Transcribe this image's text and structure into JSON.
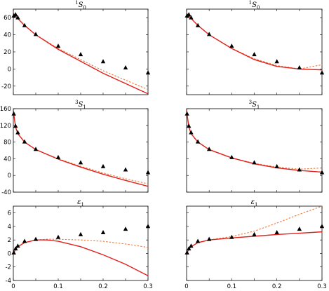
{
  "colors": {
    "solid": "#e0201b",
    "dashed": "#f07a3a",
    "points": "#000000",
    "frame": "#000000"
  },
  "chart_data": [
    {
      "type": "line",
      "title_main": "S",
      "title_sup": "1",
      "title_sub": "0",
      "xlim": [
        0,
        0.3
      ],
      "ylim": [
        -30,
        70
      ],
      "yticks": [
        "60",
        "40",
        "20",
        "0",
        "-20"
      ],
      "ytick_values": [
        60,
        40,
        20,
        0,
        -20
      ],
      "xticks": [],
      "xtick_values": [],
      "points": {
        "x": [
          0.001,
          0.005,
          0.01,
          0.025,
          0.05,
          0.1,
          0.15,
          0.2,
          0.25,
          0.3
        ],
        "y": [
          62.1,
          63.6,
          60,
          50.9,
          40.5,
          26.8,
          16.9,
          8.7,
          1.5,
          -4.5
        ]
      },
      "series": [
        {
          "style": "dashed",
          "x": [
            0,
            0.01,
            0.025,
            0.05,
            0.1,
            0.15,
            0.2,
            0.25,
            0.3
          ],
          "y": [
            65,
            59,
            51,
            40,
            24,
            11,
            -2,
            -13,
            -24
          ]
        },
        {
          "style": "solid",
          "x": [
            0,
            0.01,
            0.025,
            0.05,
            0.1,
            0.15,
            0.2,
            0.25,
            0.3
          ],
          "y": [
            65,
            59,
            51,
            40,
            23,
            9,
            -5,
            -17,
            -29
          ]
        }
      ]
    },
    {
      "type": "line",
      "title_main": "S",
      "title_sup": "1",
      "title_sub": "0",
      "xlim": [
        0,
        0.3
      ],
      "ylim": [
        -30,
        70
      ],
      "yticks": [],
      "ytick_values": [],
      "xticks": [],
      "xtick_values": [],
      "points": {
        "x": [
          0.001,
          0.005,
          0.01,
          0.025,
          0.05,
          0.1,
          0.15,
          0.2,
          0.25,
          0.3
        ],
        "y": [
          62.1,
          63.6,
          60,
          50.9,
          40.5,
          26.8,
          16.9,
          8.7,
          1.5,
          -4.5
        ]
      },
      "series": [
        {
          "style": "dashed",
          "x": [
            0,
            0.01,
            0.025,
            0.05,
            0.1,
            0.15,
            0.2,
            0.25,
            0.3
          ],
          "y": [
            65,
            59,
            51,
            40,
            24,
            12,
            4,
            0,
            5
          ]
        },
        {
          "style": "solid",
          "x": [
            0,
            0.01,
            0.025,
            0.05,
            0.1,
            0.15,
            0.2,
            0.25,
            0.3
          ],
          "y": [
            65,
            59,
            51,
            40,
            24,
            11,
            3,
            0,
            -1
          ]
        }
      ]
    },
    {
      "type": "line",
      "title_main": "S",
      "title_sup": "3",
      "title_sub": "1",
      "xlim": [
        0,
        0.3
      ],
      "ylim": [
        -40,
        160
      ],
      "yticks": [
        "160",
        "120",
        "80",
        "40",
        "0",
        "-40"
      ],
      "ytick_values": [
        160,
        120,
        80,
        40,
        0,
        -40
      ],
      "xticks": [],
      "xtick_values": [],
      "points": {
        "x": [
          0.001,
          0.005,
          0.01,
          0.025,
          0.05,
          0.1,
          0.15,
          0.2,
          0.25,
          0.3
        ],
        "y": [
          147.7,
          118.2,
          102.6,
          80.6,
          62.8,
          43.2,
          30.7,
          21.3,
          13.6,
          6.9
        ]
      },
      "series": [
        {
          "style": "dashed",
          "x": [
            0,
            0.005,
            0.01,
            0.025,
            0.05,
            0.1,
            0.15,
            0.2,
            0.25,
            0.3
          ],
          "y": [
            155,
            116,
            100,
            80,
            62,
            40,
            22,
            6,
            -8,
            -20
          ]
        },
        {
          "style": "solid",
          "x": [
            0,
            0.005,
            0.01,
            0.025,
            0.05,
            0.1,
            0.15,
            0.2,
            0.25,
            0.3
          ],
          "y": [
            155,
            116,
            100,
            80,
            62,
            39,
            20,
            3,
            -12,
            -26
          ]
        }
      ]
    },
    {
      "type": "line",
      "title_main": "S",
      "title_sup": "3",
      "title_sub": "1",
      "xlim": [
        0,
        0.3
      ],
      "ylim": [
        -40,
        160
      ],
      "yticks": [],
      "ytick_values": [],
      "xticks": [],
      "xtick_values": [],
      "points": {
        "x": [
          0.001,
          0.005,
          0.01,
          0.025,
          0.05,
          0.1,
          0.15,
          0.2,
          0.25,
          0.3
        ],
        "y": [
          147.7,
          118.2,
          102.6,
          80.6,
          62.8,
          43.2,
          30.7,
          21.3,
          13.6,
          6.9
        ]
      },
      "series": [
        {
          "style": "dashed",
          "x": [
            0,
            0.005,
            0.01,
            0.025,
            0.05,
            0.1,
            0.15,
            0.2,
            0.25,
            0.3
          ],
          "y": [
            155,
            116,
            100,
            80,
            62,
            42,
            29,
            20,
            15,
            18
          ]
        },
        {
          "style": "solid",
          "x": [
            0,
            0.005,
            0.01,
            0.025,
            0.05,
            0.1,
            0.15,
            0.2,
            0.25,
            0.3
          ],
          "y": [
            155,
            116,
            100,
            80,
            62,
            42,
            28,
            18,
            12,
            8
          ]
        }
      ]
    },
    {
      "type": "line",
      "title_main": "ε",
      "title_sup": "",
      "title_sub": "1",
      "xlim": [
        0,
        0.3
      ],
      "ylim": [
        -4,
        7
      ],
      "yticks": [
        "6",
        "4",
        "2",
        "0",
        "-2",
        "-4"
      ],
      "ytick_values": [
        6,
        4,
        2,
        0,
        -2,
        -4
      ],
      "xticks": [
        "0",
        "0.1",
        "0.2",
        "0.3"
      ],
      "xtick_values": [
        0,
        0.1,
        0.2,
        0.3
      ],
      "points": {
        "x": [
          0.001,
          0.005,
          0.01,
          0.025,
          0.05,
          0.1,
          0.15,
          0.2,
          0.25,
          0.3
        ],
        "y": [
          0.1,
          0.7,
          1.1,
          1.8,
          2.1,
          2.4,
          2.8,
          3.1,
          3.6,
          4.0
        ]
      },
      "series": [
        {
          "style": "dashed",
          "x": [
            0,
            0.005,
            0.01,
            0.025,
            0.05,
            0.075,
            0.1,
            0.15,
            0.2,
            0.25,
            0.3
          ],
          "y": [
            0,
            0.6,
            1.0,
            1.6,
            2.0,
            2.1,
            2.1,
            2.0,
            1.8,
            1.4,
            0.9
          ]
        },
        {
          "style": "solid",
          "x": [
            0,
            0.005,
            0.01,
            0.025,
            0.05,
            0.075,
            0.1,
            0.15,
            0.2,
            0.25,
            0.3
          ],
          "y": [
            0,
            0.6,
            1.0,
            1.6,
            2.0,
            2.0,
            1.8,
            1.0,
            -0.2,
            -1.6,
            -3.3
          ]
        }
      ]
    },
    {
      "type": "line",
      "title_main": "ε",
      "title_sup": "",
      "title_sub": "1",
      "xlim": [
        0,
        0.3
      ],
      "ylim": [
        -4,
        7
      ],
      "yticks": [],
      "ytick_values": [],
      "xticks": [
        "0",
        "0.1",
        "0.2",
        "0.3"
      ],
      "xtick_values": [
        0,
        0.1,
        0.2,
        0.3
      ],
      "points": {
        "x": [
          0.001,
          0.005,
          0.01,
          0.025,
          0.05,
          0.1,
          0.15,
          0.2,
          0.25,
          0.3
        ],
        "y": [
          0.1,
          0.7,
          1.1,
          1.8,
          2.1,
          2.4,
          2.8,
          3.1,
          3.6,
          4.0
        ]
      },
      "series": [
        {
          "style": "dashed",
          "x": [
            0,
            0.005,
            0.01,
            0.025,
            0.05,
            0.1,
            0.15,
            0.2,
            0.25,
            0.3
          ],
          "y": [
            0,
            0.6,
            1.0,
            1.6,
            2.0,
            2.5,
            3.3,
            4.5,
            5.8,
            7.0
          ]
        },
        {
          "style": "solid",
          "x": [
            0,
            0.005,
            0.01,
            0.025,
            0.05,
            0.1,
            0.15,
            0.2,
            0.25,
            0.3
          ],
          "y": [
            0,
            0.6,
            1.0,
            1.6,
            2.0,
            2.3,
            2.55,
            2.8,
            3.0,
            3.2
          ]
        }
      ]
    }
  ]
}
